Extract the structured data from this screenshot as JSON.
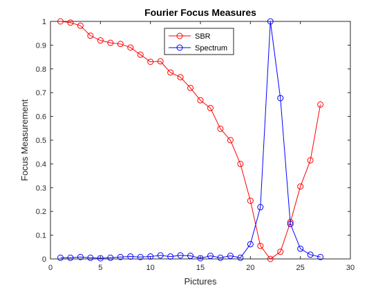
{
  "chart_data": {
    "type": "line",
    "title": "Fourier Focus Measures",
    "xlabel": "Pictures",
    "ylabel": "Focus Measurement",
    "xlim": [
      0,
      30
    ],
    "ylim": [
      0,
      1
    ],
    "xticks": [
      "0",
      "5",
      "10",
      "15",
      "20",
      "25",
      "30"
    ],
    "yticks": [
      "0",
      "0.1",
      "0.2",
      "0.3",
      "0.4",
      "0.5",
      "0.6",
      "0.7",
      "0.8",
      "0.9",
      "1"
    ],
    "grid": false,
    "legend_position": "top-center",
    "x": [
      1,
      2,
      3,
      4,
      5,
      6,
      7,
      8,
      9,
      10,
      11,
      12,
      13,
      14,
      15,
      16,
      17,
      18,
      19,
      20,
      21,
      22,
      23,
      24,
      25,
      26,
      27
    ],
    "series": [
      {
        "name": "SBR",
        "color": "#ff0000",
        "marker": "circle",
        "values": [
          1.0,
          0.995,
          0.982,
          0.94,
          0.92,
          0.91,
          0.905,
          0.89,
          0.86,
          0.83,
          0.832,
          0.785,
          0.765,
          0.72,
          0.668,
          0.635,
          0.548,
          0.5,
          0.4,
          0.245,
          0.055,
          0.0,
          0.03,
          0.155,
          0.305,
          0.415,
          0.65
        ]
      },
      {
        "name": "Spectrum",
        "color": "#0000ff",
        "marker": "circle",
        "values": [
          0.005,
          0.005,
          0.008,
          0.005,
          0.003,
          0.005,
          0.008,
          0.01,
          0.008,
          0.01,
          0.015,
          0.01,
          0.015,
          0.013,
          0.003,
          0.013,
          0.005,
          0.013,
          0.005,
          0.062,
          0.218,
          1.0,
          0.677,
          0.147,
          0.043,
          0.018,
          0.008
        ]
      }
    ]
  }
}
